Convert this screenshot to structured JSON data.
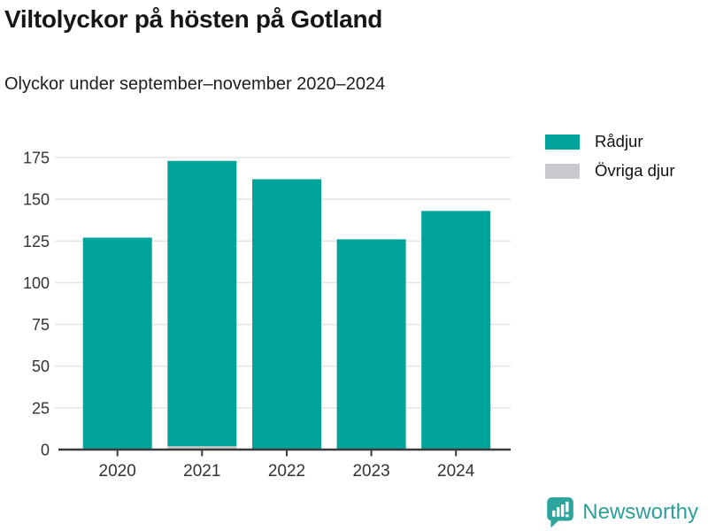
{
  "header": {
    "title": "Viltolyckor på hösten på Gotland",
    "subtitle": "Olyckor under september–november 2020–2024"
  },
  "chart_data": {
    "type": "bar",
    "stacked": true,
    "title": "Viltolyckor på hösten på Gotland",
    "subtitle": "Olyckor under september–november 2020–2024",
    "categories": [
      "2020",
      "2021",
      "2022",
      "2023",
      "2024"
    ],
    "series": [
      {
        "name": "Rådjur",
        "color": "#00a49b",
        "values": [
          127,
          171,
          162,
          126,
          143
        ]
      },
      {
        "name": "Övriga djur",
        "color": "#c8cacd",
        "values": [
          0,
          2,
          0,
          0,
          0
        ]
      }
    ],
    "totals": [
      127,
      173,
      162,
      126,
      143
    ],
    "xlabel": "",
    "ylabel": "",
    "ylim": [
      0,
      175
    ],
    "yticks": [
      0,
      25,
      50,
      75,
      100,
      125,
      150,
      175
    ],
    "grid": true,
    "legend_position": "right-top"
  },
  "footer": {
    "brand": "Newsworthy"
  },
  "colors": {
    "accent": "#00a49b",
    "muted": "#c8cacd",
    "axis": "#3b3b3b",
    "grid": "#e5e5e5",
    "tick_label": "#333333",
    "title_text": "#161616",
    "brand": "#2d9f97"
  }
}
